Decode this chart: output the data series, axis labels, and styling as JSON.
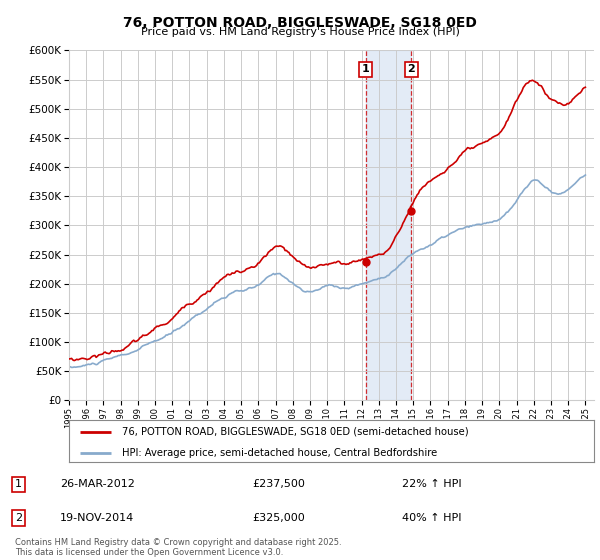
{
  "title": "76, POTTON ROAD, BIGGLESWADE, SG18 0ED",
  "subtitle": "Price paid vs. HM Land Registry's House Price Index (HPI)",
  "legend_line1": "76, POTTON ROAD, BIGGLESWADE, SG18 0ED (semi-detached house)",
  "legend_line2": "HPI: Average price, semi-detached house, Central Bedfordshire",
  "transaction1_date": "26-MAR-2012",
  "transaction1_price": "£237,500",
  "transaction1_hpi": "22% ↑ HPI",
  "transaction2_date": "19-NOV-2014",
  "transaction2_price": "£325,000",
  "transaction2_hpi": "40% ↑ HPI",
  "price_color": "#cc0000",
  "hpi_color": "#88aacc",
  "background_color": "#ffffff",
  "grid_color": "#cccccc",
  "footer": "Contains HM Land Registry data © Crown copyright and database right 2025.\nThis data is licensed under the Open Government Licence v3.0.",
  "ylim": [
    0,
    600000
  ],
  "yticks": [
    0,
    50000,
    100000,
    150000,
    200000,
    250000,
    300000,
    350000,
    400000,
    450000,
    500000,
    550000,
    600000
  ],
  "transaction1_x": 2012.23,
  "transaction1_y": 237500,
  "transaction2_x": 2014.89,
  "transaction2_y": 325000,
  "shaded_xmin": 2012.23,
  "shaded_xmax": 2014.89,
  "xlim_min": 1995,
  "xlim_max": 2025.5
}
